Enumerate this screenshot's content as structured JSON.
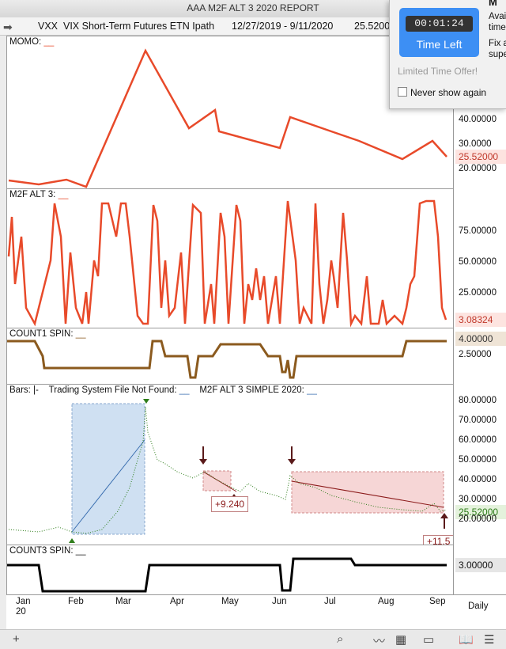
{
  "window": {
    "title": "AAA M2F ALT 3 2020  REPORT"
  },
  "infobar": {
    "symbol": "VXX",
    "name": "VIX Short-Term Futures ETN Ipath",
    "range": "12/27/2019 - 9/11/2020",
    "price": "25.5200"
  },
  "popup": {
    "timer": "00:01:24",
    "button_label": "Time Left",
    "offer_text": "Limited Time Offer!",
    "checkbox_label": "Never show again",
    "side_title": "M",
    "side_lines": [
      "Avai",
      "time",
      "Fix a",
      "supe"
    ]
  },
  "panes": {
    "momo": {
      "title": "MOMO:",
      "ticks": [
        "40.00000",
        "30.0000",
        "20.00000"
      ],
      "badge": "25.52000"
    },
    "m2f": {
      "title": "M2F ALT 3:",
      "ticks": [
        "75.00000",
        "50.00000",
        "25.00000"
      ],
      "badge": "3.08324"
    },
    "count1": {
      "title": "COUNT1 SPIN:",
      "ticks": [
        "2.50000"
      ],
      "badge": "4.00000"
    },
    "bars": {
      "title_a": "Bars: |-",
      "title_b": "Trading System File Not Found:",
      "title_c": "M2F ALT 3 SIMPLE 2020:",
      "ticks": [
        "80.00000",
        "70.00000",
        "60.00000",
        "50.00000",
        "40.00000",
        "30.00000",
        "20.00000"
      ],
      "badge": "25.52000",
      "annotations": [
        "+9.240",
        "+11.5"
      ]
    },
    "count3": {
      "title": "COUNT3 SPIN:",
      "badge": "3.00000"
    }
  },
  "timeaxis": {
    "months": [
      "Jan",
      "Feb",
      "Mar",
      "Apr",
      "May",
      "Jun",
      "Jul",
      "Aug",
      "Sep"
    ],
    "year": "20",
    "period": "Daily"
  },
  "colors": {
    "momo": "#e84a2a",
    "count1": "#8b5a1e",
    "bars_up": "#2e7d1a",
    "bars_down": "#222222",
    "trade_box_blue": "#cfe0f2",
    "trade_box_red": "#f6d6d6"
  }
}
